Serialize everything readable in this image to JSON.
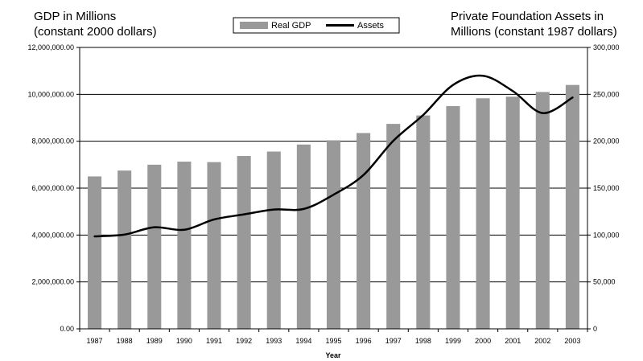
{
  "chart_data": {
    "type": "bar",
    "left_title_lines": [
      "GDP in Millions",
      "(constant 2000 dollars)"
    ],
    "right_title_lines": [
      "Private Foundation Assets in",
      "Millions (constant 1987 dollars)"
    ],
    "xlabel": "Year",
    "categories": [
      "1987",
      "1988",
      "1989",
      "1990",
      "1991",
      "1992",
      "1993",
      "1994",
      "1995",
      "1996",
      "1997",
      "1998",
      "1999",
      "2000",
      "2001",
      "2002",
      "2003"
    ],
    "y_left": {
      "min": 0,
      "max": 12000000,
      "step": 2000000,
      "tick_labels": [
        "0.00",
        "2,000,000.00",
        "4,000,000.00",
        "6,000,000.00",
        "8,000,000.00",
        "10,000,000.00",
        "12,000,000.00"
      ]
    },
    "y_right": {
      "min": 0,
      "max": 300000,
      "step": 50000,
      "tick_labels": [
        "0",
        "50,000",
        "100,000",
        "150,000",
        "200,000",
        "250,000",
        "300,000"
      ]
    },
    "series": [
      {
        "name": "Real GDP",
        "type": "bar",
        "axis": "left",
        "color": "#999999",
        "values": [
          6500000,
          6750000,
          7000000,
          7130000,
          7110000,
          7370000,
          7560000,
          7860000,
          8040000,
          8350000,
          8740000,
          9100000,
          9500000,
          9830000,
          9900000,
          10100000,
          10400000
        ]
      },
      {
        "name": "Assets",
        "type": "line",
        "axis": "right",
        "color": "#000000",
        "values": [
          98600,
          100500,
          108300,
          105600,
          116600,
          122000,
          127200,
          127800,
          143000,
          164000,
          200500,
          228000,
          260000,
          269800,
          253500,
          230000,
          246600
        ]
      }
    ],
    "grid": true,
    "legend_position": "top-center"
  }
}
